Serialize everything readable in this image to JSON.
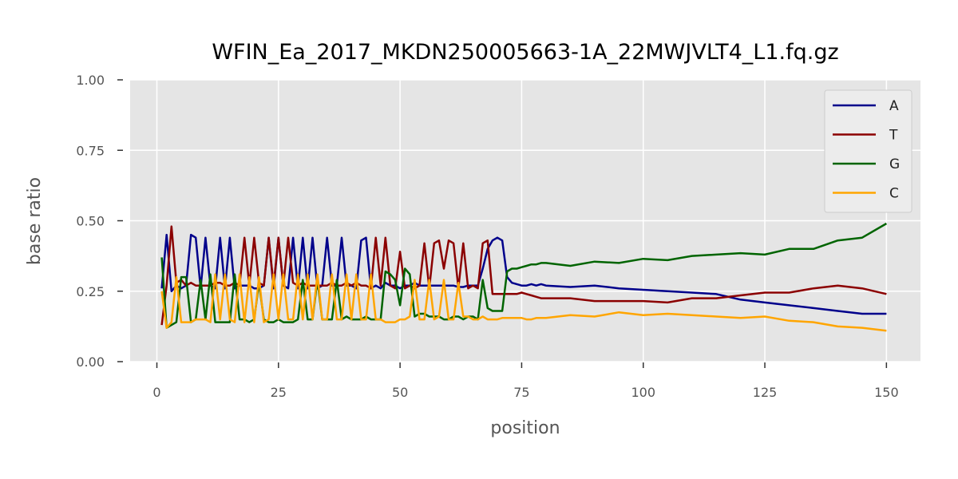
{
  "chart_data": {
    "type": "line",
    "title": "WFIN_Ea_2017_MKDN250005663-1A_22MWJVLT4_L1.fq.gz",
    "xlabel": "position",
    "ylabel": "base ratio",
    "xlim": [
      -5.5,
      157
    ],
    "ylim": [
      0,
      1
    ],
    "xticks": [
      0,
      25,
      50,
      75,
      100,
      125,
      150
    ],
    "yticks": [
      0,
      0.25,
      0.5,
      0.75,
      1
    ],
    "xtick_labels": [
      "0",
      "25",
      "50",
      "75",
      "100",
      "125",
      "150"
    ],
    "ytick_labels": [
      "0.00",
      "0.25",
      "0.50",
      "0.75",
      "1.00"
    ],
    "grid": true,
    "legend_position": "top-right",
    "series": [
      {
        "name": "A",
        "color": "#00008b",
        "x": [
          1,
          2,
          3,
          4,
          5,
          6,
          7,
          8,
          9,
          10,
          11,
          12,
          13,
          14,
          15,
          16,
          17,
          18,
          19,
          20,
          21,
          22,
          23,
          24,
          25,
          26,
          27,
          28,
          29,
          30,
          31,
          32,
          33,
          34,
          35,
          36,
          37,
          38,
          39,
          40,
          41,
          42,
          43,
          44,
          45,
          46,
          47,
          48,
          49,
          50,
          51,
          52,
          53,
          54,
          55,
          56,
          57,
          58,
          59,
          60,
          61,
          62,
          63,
          64,
          65,
          66,
          67,
          68,
          69,
          70,
          71,
          72,
          73,
          74,
          75,
          76,
          77,
          78,
          79,
          80,
          85,
          90,
          95,
          100,
          105,
          110,
          115,
          120,
          125,
          130,
          135,
          140,
          145,
          150
        ],
        "values": [
          0.26,
          0.45,
          0.25,
          0.27,
          0.26,
          0.27,
          0.45,
          0.44,
          0.26,
          0.44,
          0.27,
          0.26,
          0.44,
          0.26,
          0.44,
          0.26,
          0.27,
          0.27,
          0.27,
          0.26,
          0.26,
          0.27,
          0.44,
          0.26,
          0.44,
          0.27,
          0.26,
          0.44,
          0.26,
          0.44,
          0.26,
          0.44,
          0.26,
          0.27,
          0.44,
          0.27,
          0.27,
          0.44,
          0.27,
          0.27,
          0.26,
          0.43,
          0.44,
          0.26,
          0.27,
          0.26,
          0.28,
          0.27,
          0.27,
          0.26,
          0.27,
          0.27,
          0.28,
          0.27,
          0.27,
          0.27,
          0.27,
          0.27,
          0.27,
          0.27,
          0.27,
          0.265,
          0.265,
          0.27,
          0.27,
          0.27,
          0.33,
          0.4,
          0.43,
          0.44,
          0.43,
          0.3,
          0.28,
          0.275,
          0.27,
          0.27,
          0.275,
          0.27,
          0.275,
          0.27,
          0.265,
          0.27,
          0.26,
          0.255,
          0.25,
          0.245,
          0.24,
          0.22,
          0.21,
          0.2,
          0.19,
          0.18,
          0.17,
          0.17
        ]
      },
      {
        "name": "T",
        "color": "#8b0000",
        "x": [
          1,
          2,
          3,
          4,
          5,
          6,
          7,
          8,
          9,
          10,
          11,
          12,
          13,
          14,
          15,
          16,
          17,
          18,
          19,
          20,
          21,
          22,
          23,
          24,
          25,
          26,
          27,
          28,
          29,
          30,
          31,
          32,
          33,
          34,
          35,
          36,
          37,
          38,
          39,
          40,
          41,
          42,
          43,
          44,
          45,
          46,
          47,
          48,
          49,
          50,
          51,
          52,
          53,
          54,
          55,
          56,
          57,
          58,
          59,
          60,
          61,
          62,
          63,
          64,
          65,
          66,
          67,
          68,
          69,
          70,
          71,
          72,
          73,
          74,
          75,
          76,
          77,
          78,
          79,
          80,
          85,
          90,
          95,
          100,
          105,
          110,
          115,
          120,
          125,
          130,
          135,
          140,
          145,
          150
        ],
        "values": [
          0.13,
          0.27,
          0.48,
          0.28,
          0.29,
          0.27,
          0.28,
          0.27,
          0.27,
          0.27,
          0.27,
          0.28,
          0.28,
          0.27,
          0.27,
          0.28,
          0.27,
          0.44,
          0.27,
          0.44,
          0.28,
          0.27,
          0.44,
          0.27,
          0.44,
          0.27,
          0.44,
          0.28,
          0.27,
          0.28,
          0.27,
          0.27,
          0.27,
          0.27,
          0.27,
          0.28,
          0.27,
          0.27,
          0.28,
          0.27,
          0.28,
          0.27,
          0.27,
          0.26,
          0.44,
          0.27,
          0.44,
          0.27,
          0.26,
          0.39,
          0.26,
          0.27,
          0.26,
          0.27,
          0.42,
          0.26,
          0.42,
          0.43,
          0.33,
          0.43,
          0.42,
          0.26,
          0.42,
          0.26,
          0.27,
          0.26,
          0.42,
          0.43,
          0.24,
          0.24,
          0.24,
          0.24,
          0.24,
          0.24,
          0.245,
          0.24,
          0.235,
          0.23,
          0.225,
          0.225,
          0.225,
          0.215,
          0.215,
          0.215,
          0.21,
          0.225,
          0.225,
          0.235,
          0.245,
          0.245,
          0.26,
          0.27,
          0.26,
          0.24
        ]
      },
      {
        "name": "G",
        "color": "#006400",
        "x": [
          1,
          2,
          3,
          4,
          5,
          6,
          7,
          8,
          9,
          10,
          11,
          12,
          13,
          14,
          15,
          16,
          17,
          18,
          19,
          20,
          21,
          22,
          23,
          24,
          25,
          26,
          27,
          28,
          29,
          30,
          31,
          32,
          33,
          34,
          35,
          36,
          37,
          38,
          39,
          40,
          41,
          42,
          43,
          44,
          45,
          46,
          47,
          48,
          49,
          50,
          51,
          52,
          53,
          54,
          55,
          56,
          57,
          58,
          59,
          60,
          61,
          62,
          63,
          64,
          65,
          66,
          67,
          68,
          69,
          70,
          71,
          72,
          73,
          74,
          75,
          76,
          77,
          78,
          79,
          80,
          85,
          90,
          95,
          100,
          105,
          110,
          115,
          120,
          125,
          130,
          135,
          140,
          145,
          150
        ],
        "values": [
          0.37,
          0.12,
          0.13,
          0.14,
          0.3,
          0.3,
          0.14,
          0.15,
          0.29,
          0.15,
          0.31,
          0.14,
          0.14,
          0.14,
          0.14,
          0.31,
          0.15,
          0.15,
          0.14,
          0.15,
          0.28,
          0.15,
          0.14,
          0.14,
          0.15,
          0.14,
          0.14,
          0.14,
          0.15,
          0.29,
          0.15,
          0.15,
          0.29,
          0.15,
          0.15,
          0.15,
          0.29,
          0.15,
          0.16,
          0.15,
          0.15,
          0.15,
          0.16,
          0.15,
          0.15,
          0.15,
          0.32,
          0.31,
          0.29,
          0.2,
          0.33,
          0.31,
          0.16,
          0.17,
          0.17,
          0.16,
          0.16,
          0.16,
          0.15,
          0.15,
          0.16,
          0.16,
          0.15,
          0.16,
          0.16,
          0.15,
          0.29,
          0.19,
          0.18,
          0.18,
          0.18,
          0.32,
          0.33,
          0.33,
          0.335,
          0.34,
          0.345,
          0.345,
          0.35,
          0.35,
          0.34,
          0.355,
          0.35,
          0.365,
          0.36,
          0.375,
          0.38,
          0.385,
          0.38,
          0.4,
          0.4,
          0.43,
          0.44,
          0.49
        ]
      },
      {
        "name": "C",
        "color": "#ffa500",
        "x": [
          1,
          2,
          3,
          4,
          5,
          6,
          7,
          8,
          9,
          10,
          11,
          12,
          13,
          14,
          15,
          16,
          17,
          18,
          19,
          20,
          21,
          22,
          23,
          24,
          25,
          26,
          27,
          28,
          29,
          30,
          31,
          32,
          33,
          34,
          35,
          36,
          37,
          38,
          39,
          40,
          41,
          42,
          43,
          44,
          45,
          46,
          47,
          48,
          49,
          50,
          51,
          52,
          53,
          54,
          55,
          56,
          57,
          58,
          59,
          60,
          61,
          62,
          63,
          64,
          65,
          66,
          67,
          68,
          69,
          70,
          71,
          72,
          73,
          74,
          75,
          76,
          77,
          78,
          79,
          80,
          85,
          90,
          95,
          100,
          105,
          110,
          115,
          120,
          125,
          130,
          135,
          140,
          145,
          150
        ],
        "values": [
          0.25,
          0.12,
          0.14,
          0.3,
          0.14,
          0.14,
          0.14,
          0.15,
          0.15,
          0.15,
          0.14,
          0.31,
          0.15,
          0.31,
          0.15,
          0.14,
          0.31,
          0.14,
          0.3,
          0.14,
          0.3,
          0.14,
          0.15,
          0.31,
          0.15,
          0.31,
          0.15,
          0.15,
          0.31,
          0.15,
          0.31,
          0.15,
          0.31,
          0.15,
          0.15,
          0.31,
          0.15,
          0.15,
          0.31,
          0.15,
          0.31,
          0.15,
          0.15,
          0.31,
          0.15,
          0.15,
          0.14,
          0.14,
          0.14,
          0.15,
          0.15,
          0.16,
          0.29,
          0.15,
          0.15,
          0.29,
          0.15,
          0.16,
          0.29,
          0.15,
          0.15,
          0.28,
          0.16,
          0.16,
          0.15,
          0.15,
          0.16,
          0.15,
          0.15,
          0.15,
          0.155,
          0.155,
          0.155,
          0.155,
          0.155,
          0.15,
          0.15,
          0.155,
          0.155,
          0.155,
          0.165,
          0.16,
          0.175,
          0.165,
          0.17,
          0.165,
          0.16,
          0.155,
          0.16,
          0.145,
          0.14,
          0.125,
          0.12,
          0.11
        ]
      }
    ]
  }
}
